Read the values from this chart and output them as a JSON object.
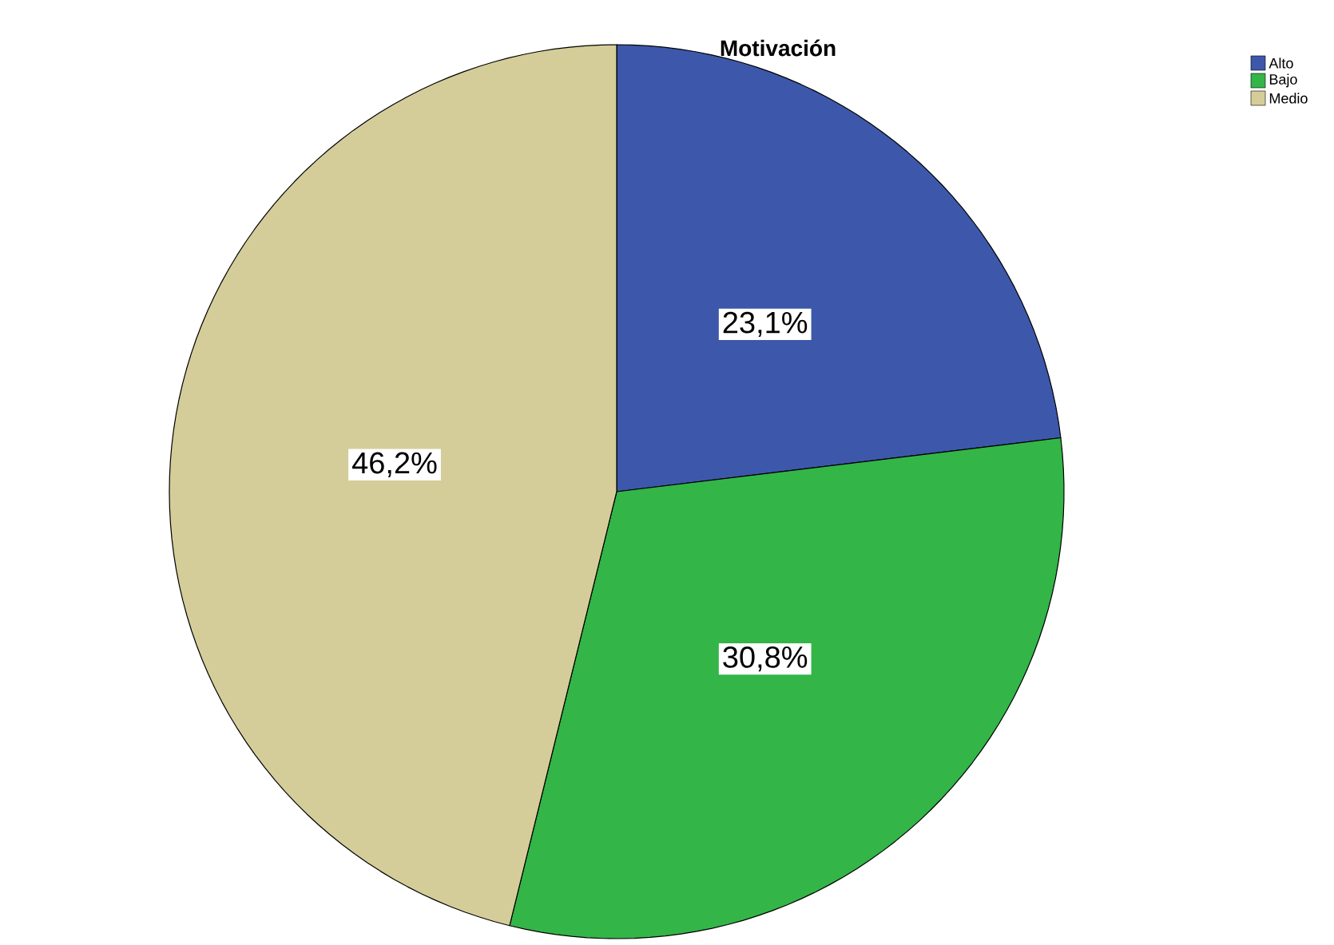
{
  "chart_data": {
    "type": "pie",
    "title": "Motivación",
    "categories": [
      "Alto",
      "Bajo",
      "Medio"
    ],
    "values": [
      23.1,
      30.8,
      46.2
    ],
    "colors": [
      "#3d58aa",
      "#33b548",
      "#d5cd99"
    ],
    "value_labels": [
      "23,1%",
      "30,8%",
      "46,2%"
    ],
    "legend": "top right"
  }
}
